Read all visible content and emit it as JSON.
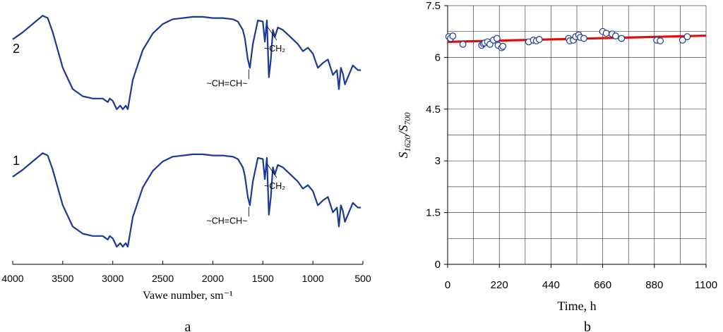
{
  "chart_data": [
    {
      "type": "line",
      "panel_label": "a",
      "xlabel": "Vawe number, sm⁻¹",
      "ylabel": "",
      "xlim": [
        4000,
        500
      ],
      "x_ticks": [
        "4000",
        "3500",
        "3000",
        "2500",
        "2000",
        "1500",
        "1000",
        "500"
      ],
      "grid": false,
      "series": [
        {
          "name": "2",
          "x": [
            4000,
            3900,
            3800,
            3700,
            3650,
            3600,
            3500,
            3400,
            3300,
            3200,
            3100,
            3050,
            3030,
            3000,
            2960,
            2925,
            2900,
            2870,
            2850,
            2800,
            2700,
            2600,
            2500,
            2400,
            2300,
            2200,
            2100,
            2000,
            1900,
            1800,
            1750,
            1700,
            1680,
            1650,
            1630,
            1600,
            1550,
            1500,
            1480,
            1460,
            1440,
            1420,
            1400,
            1380,
            1350,
            1300,
            1250,
            1200,
            1150,
            1100,
            1050,
            1000,
            950,
            900,
            850,
            800,
            760,
            740,
            720,
            700,
            680,
            650,
            600,
            550,
            520
          ],
          "values": [
            62,
            68,
            75,
            82,
            80,
            68,
            38,
            20,
            14,
            12,
            12,
            9,
            12,
            10,
            3,
            6,
            3,
            6,
            3,
            28,
            53,
            67,
            75,
            79,
            80,
            81,
            81,
            80,
            80,
            79,
            77,
            70,
            63,
            45,
            38,
            58,
            78,
            77,
            60,
            78,
            30,
            45,
            70,
            64,
            72,
            70,
            66,
            62,
            58,
            52,
            55,
            50,
            38,
            42,
            45,
            32,
            36,
            20,
            38,
            33,
            24,
            30,
            40,
            36,
            36
          ]
        },
        {
          "name": "1",
          "x": [
            4000,
            3900,
            3800,
            3700,
            3650,
            3600,
            3500,
            3400,
            3300,
            3200,
            3100,
            3050,
            3030,
            3000,
            2960,
            2925,
            2900,
            2870,
            2850,
            2800,
            2700,
            2600,
            2500,
            2400,
            2300,
            2200,
            2100,
            2000,
            1900,
            1800,
            1750,
            1700,
            1680,
            1650,
            1630,
            1600,
            1550,
            1500,
            1480,
            1460,
            1440,
            1420,
            1400,
            1380,
            1350,
            1300,
            1250,
            1200,
            1150,
            1100,
            1050,
            1000,
            950,
            900,
            850,
            800,
            760,
            740,
            720,
            700,
            680,
            650,
            600,
            550,
            520
          ],
          "values": [
            62,
            68,
            75,
            82,
            80,
            68,
            38,
            20,
            14,
            12,
            12,
            9,
            12,
            10,
            3,
            6,
            3,
            6,
            3,
            28,
            53,
            67,
            75,
            79,
            80,
            81,
            81,
            80,
            80,
            79,
            77,
            70,
            63,
            45,
            38,
            58,
            78,
            77,
            60,
            78,
            30,
            45,
            70,
            64,
            72,
            70,
            66,
            62,
            58,
            52,
            55,
            50,
            38,
            42,
            45,
            32,
            36,
            20,
            38,
            33,
            24,
            30,
            40,
            36,
            36
          ]
        }
      ],
      "annotations": [
        {
          "curve": "2",
          "text": "~CH=CH~",
          "x": 1640
        },
        {
          "curve": "2",
          "text": "~CH₂",
          "x": 1460
        },
        {
          "curve": "1",
          "text": "~CH=CH~",
          "x": 1640
        },
        {
          "curve": "1",
          "text": "~CH₂",
          "x": 1460
        }
      ],
      "color": "#1a3a96"
    },
    {
      "type": "scatter",
      "panel_label": "b",
      "xlabel": "Time, h",
      "ylabel_main": "S",
      "ylabel_sub1": "1620",
      "ylabel_mid": "/S",
      "ylabel_sub2": "700",
      "xlim": [
        0,
        1100
      ],
      "ylim": [
        0,
        7.5
      ],
      "x_ticks": [
        "0",
        "220",
        "440",
        "660",
        "880",
        "1100"
      ],
      "y_ticks": [
        "0",
        "1.5",
        "3",
        "4.5",
        "6",
        "7.5"
      ],
      "grid": true,
      "points": {
        "x": [
          5,
          12,
          22,
          65,
          145,
          152,
          158,
          170,
          180,
          195,
          210,
          215,
          230,
          235,
          345,
          365,
          378,
          390,
          515,
          520,
          535,
          545,
          558,
          565,
          580,
          660,
          675,
          700,
          715,
          740,
          890,
          905,
          1000,
          1020
        ],
        "y": [
          6.6,
          6.55,
          6.62,
          6.38,
          6.35,
          6.4,
          6.42,
          6.45,
          6.38,
          6.5,
          6.55,
          6.35,
          6.28,
          6.32,
          6.45,
          6.5,
          6.48,
          6.52,
          6.55,
          6.48,
          6.5,
          6.6,
          6.65,
          6.58,
          6.55,
          6.75,
          6.7,
          6.68,
          6.62,
          6.55,
          6.5,
          6.48,
          6.5,
          6.6
        ]
      },
      "trend_line": {
        "x": [
          0,
          1100
        ],
        "y": [
          6.45,
          6.63
        ]
      },
      "marker_color": "#1a3a96",
      "trend_color": "#e01010"
    }
  ]
}
